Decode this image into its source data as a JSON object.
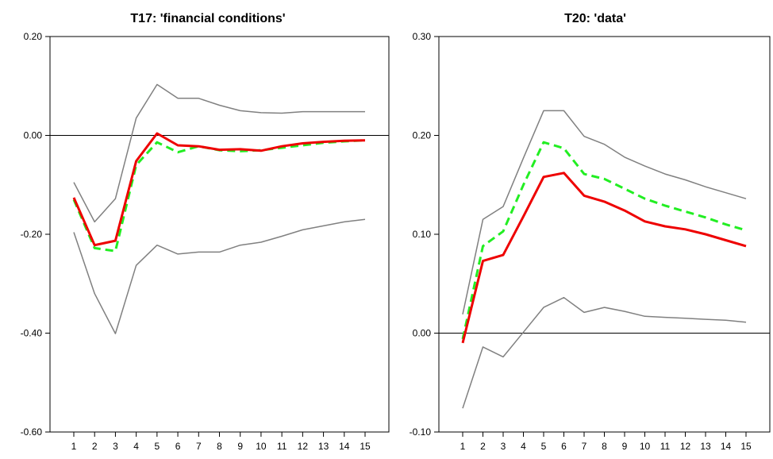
{
  "chart_data": [
    {
      "type": "line",
      "title": "T17: 'financial conditions'",
      "x": [
        1,
        2,
        3,
        4,
        5,
        6,
        7,
        8,
        9,
        10,
        11,
        12,
        13,
        14,
        15
      ],
      "ylim": [
        -0.6,
        0.2
      ],
      "yticks": [
        0.2,
        0.0,
        -0.2,
        -0.4,
        -0.6
      ],
      "ytick_labels": [
        "0.20",
        "0.00",
        "-0.20",
        "-0.40",
        "-0.60"
      ],
      "zero_line": true,
      "grid": false,
      "series": [
        {
          "key": "upper",
          "color": "#808080",
          "style": "solid",
          "values": [
            -0.095,
            -0.175,
            -0.128,
            0.035,
            0.103,
            0.075,
            0.075,
            0.061,
            0.05,
            0.046,
            0.045,
            0.048,
            0.048,
            0.048,
            0.048
          ]
        },
        {
          "key": "lower",
          "color": "#808080",
          "style": "solid",
          "values": [
            -0.196,
            -0.32,
            -0.401,
            -0.263,
            -0.222,
            -0.24,
            -0.236,
            -0.236,
            -0.222,
            -0.216,
            -0.204,
            -0.191,
            -0.183,
            -0.175,
            -0.17
          ]
        },
        {
          "key": "dashed",
          "color": "#22ee22",
          "style": "dashed",
          "values": [
            -0.13,
            -0.228,
            -0.234,
            -0.06,
            -0.014,
            -0.034,
            -0.022,
            -0.03,
            -0.032,
            -0.03,
            -0.025,
            -0.02,
            -0.015,
            -0.012,
            -0.01
          ]
        },
        {
          "key": "median",
          "color": "#ee0000",
          "style": "solid",
          "values": [
            -0.126,
            -0.222,
            -0.213,
            -0.052,
            0.004,
            -0.02,
            -0.022,
            -0.029,
            -0.028,
            -0.031,
            -0.022,
            -0.016,
            -0.013,
            -0.011,
            -0.01
          ]
        }
      ]
    },
    {
      "type": "line",
      "title": "T20: 'data'",
      "x": [
        1,
        2,
        3,
        4,
        5,
        6,
        7,
        8,
        9,
        10,
        11,
        12,
        13,
        14,
        15
      ],
      "ylim": [
        -0.1,
        0.3
      ],
      "yticks": [
        0.3,
        0.2,
        0.1,
        0.0,
        -0.1
      ],
      "ytick_labels": [
        "0.30",
        "0.20",
        "0.10",
        "0.00",
        "-0.10"
      ],
      "zero_line": true,
      "grid": false,
      "series": [
        {
          "key": "upper",
          "color": "#808080",
          "style": "solid",
          "values": [
            0.019,
            0.115,
            0.128,
            0.177,
            0.225,
            0.225,
            0.199,
            0.191,
            0.178,
            0.169,
            0.161,
            0.155,
            0.148,
            0.142,
            0.136
          ]
        },
        {
          "key": "lower",
          "color": "#808080",
          "style": "solid",
          "values": [
            -0.076,
            -0.014,
            -0.024,
            0.001,
            0.026,
            0.036,
            0.021,
            0.026,
            0.022,
            0.017,
            0.016,
            0.015,
            0.014,
            0.013,
            0.011
          ]
        },
        {
          "key": "dashed",
          "color": "#22ee22",
          "style": "dashed",
          "values": [
            -0.006,
            0.088,
            0.103,
            0.15,
            0.193,
            0.187,
            0.161,
            0.156,
            0.146,
            0.136,
            0.129,
            0.123,
            0.117,
            0.11,
            0.104
          ]
        },
        {
          "key": "median",
          "color": "#ee0000",
          "style": "solid",
          "values": [
            -0.01,
            0.073,
            0.079,
            0.118,
            0.158,
            0.162,
            0.139,
            0.133,
            0.124,
            0.113,
            0.108,
            0.105,
            0.1,
            0.094,
            0.088
          ]
        }
      ]
    }
  ]
}
